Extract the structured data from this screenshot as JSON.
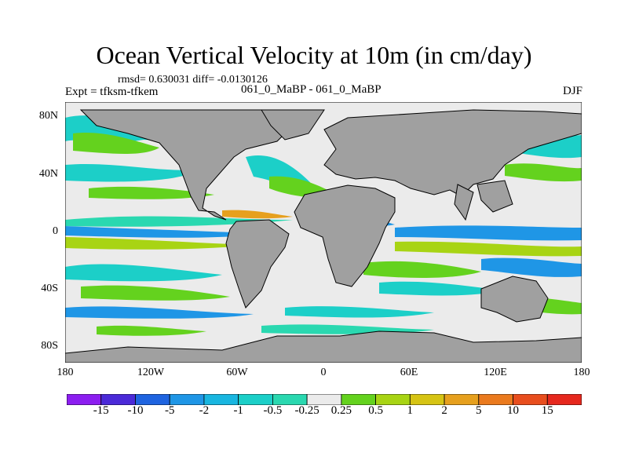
{
  "title": "Ocean Vertical Velocity at 10m (in cm/day)",
  "stats": "rmsd= 0.630031 diff= -0.0130126",
  "experiment": "Expt = tfksm-tfkem",
  "cases": "061_0_MaBP - 061_0_MaBP",
  "season": "DJF",
  "lat_labels": [
    "80N",
    "40N",
    "0",
    "40S",
    "80S"
  ],
  "lon_labels": [
    "180",
    "120W",
    "60W",
    "0",
    "60E",
    "120E",
    "180"
  ],
  "colorbar": {
    "labels": [
      "-15",
      "-10",
      "-5",
      "-2",
      "-1",
      "-0.5",
      "-0.25",
      "0.25",
      "0.5",
      "1",
      "2",
      "5",
      "10",
      "15"
    ],
    "colors": [
      "#8c1ef0",
      "#4b2ad8",
      "#1f64e0",
      "#1f96e6",
      "#19b6e0",
      "#1ccfc8",
      "#2ad8b0",
      "#ebebeb",
      "#64d21e",
      "#a8d414",
      "#d6c414",
      "#e6a01e",
      "#ea7a1e",
      "#e84e1e",
      "#e6281e"
    ]
  },
  "colors": {
    "land": "#a0a0a0",
    "land_edge": "#000000",
    "neutral": "#ebebeb"
  }
}
